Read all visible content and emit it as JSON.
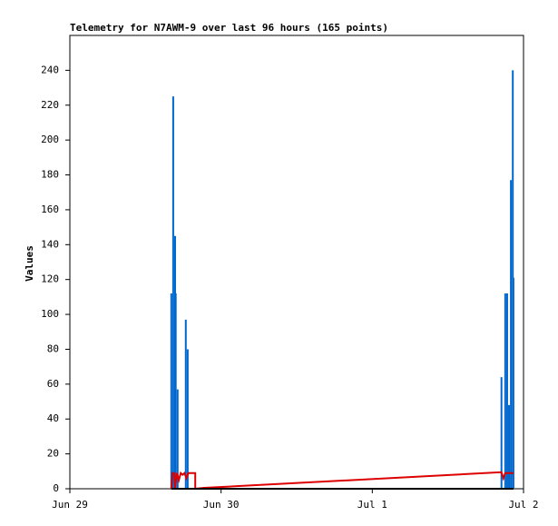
{
  "chart_data": {
    "type": "line",
    "title": "Telemetry for N7AWM-9 over last 96 hours (165 points)",
    "y_label": "Values",
    "xlim": [
      0,
      72
    ],
    "ylim": [
      0,
      260
    ],
    "xticks": [
      {
        "value": 0,
        "label": "Jun 29"
      },
      {
        "value": 24,
        "label": "Jun 30"
      },
      {
        "value": 48,
        "label": "Jul 1"
      },
      {
        "value": 72,
        "label": "Jul 2"
      }
    ],
    "yticks": [
      0,
      20,
      40,
      60,
      80,
      100,
      120,
      140,
      160,
      180,
      200,
      220,
      240
    ],
    "grid": false,
    "series": [
      {
        "style": "impulse",
        "color": "#0066cc",
        "x": [
          16.1,
          16.4,
          16.7,
          16.8,
          17.1,
          18.4,
          18.7,
          68.5,
          69.1,
          69.4,
          69.7,
          70.0,
          70.3,
          70.4
        ],
        "values": [
          112,
          225,
          145,
          112,
          57,
          97,
          80,
          64,
          112,
          112,
          48,
          177,
          240,
          121
        ]
      },
      {
        "style": "line",
        "color": "#dd0000",
        "x": [
          16.1,
          16.3,
          16.6,
          16.7,
          17.0,
          17.3,
          17.6,
          17.9,
          18.2,
          18.5,
          18.8,
          19.1,
          19.5,
          19.9,
          19.9,
          21.3,
          68.5,
          68.8,
          69.1,
          70.4
        ],
        "values": [
          0,
          9,
          9,
          0,
          9,
          5,
          9,
          8,
          9,
          6,
          9,
          9,
          9,
          9,
          0,
          0.5,
          9.5,
          6,
          9,
          9
        ]
      },
      {
        "style": "line",
        "color": "#000000",
        "x": [
          16.1,
          70.4
        ],
        "values": [
          0,
          0
        ]
      }
    ]
  }
}
